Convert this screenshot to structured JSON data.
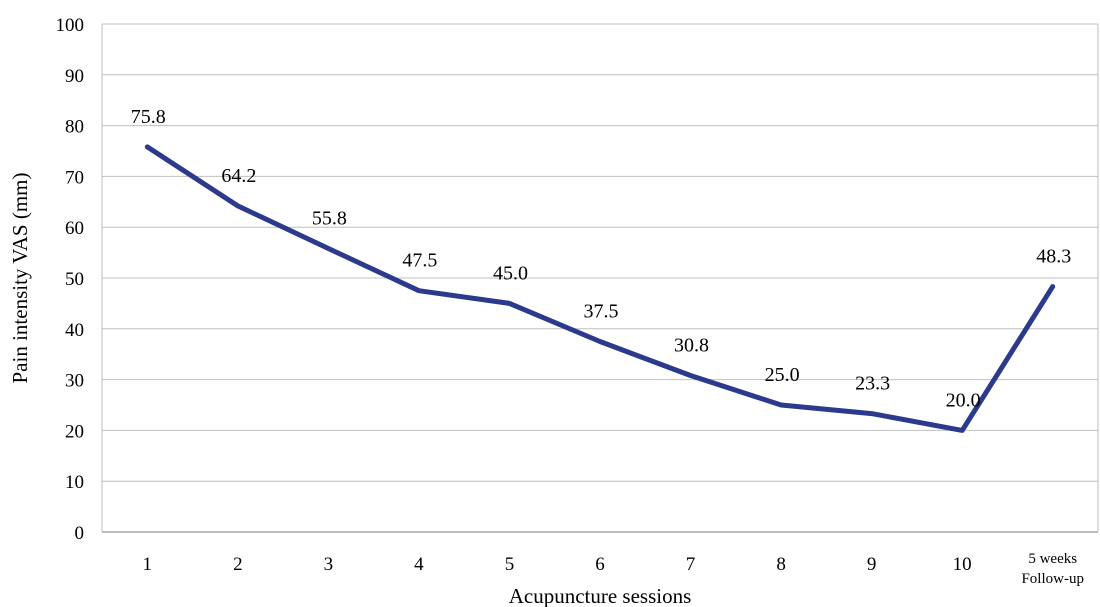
{
  "chart_data": {
    "type": "line",
    "title": "",
    "xlabel": "Acupuncture sessions",
    "ylabel": "Pain intensity VAS (mm)",
    "ylim": [
      0,
      100
    ],
    "y_ticks": [
      "0",
      "10",
      "20",
      "30",
      "40",
      "50",
      "60",
      "70",
      "80",
      "90",
      "100"
    ],
    "grid": "horizontal",
    "legend": "none",
    "categories": [
      "1",
      "2",
      "3",
      "4",
      "5",
      "6",
      "7",
      "8",
      "9",
      "10",
      "5 weeks Follow-up"
    ],
    "category_lines": [
      [
        "1"
      ],
      [
        "2"
      ],
      [
        "3"
      ],
      [
        "4"
      ],
      [
        "5"
      ],
      [
        "6"
      ],
      [
        "7"
      ],
      [
        "8"
      ],
      [
        "9"
      ],
      [
        "10"
      ],
      [
        "5 weeks",
        "Follow-up"
      ]
    ],
    "series": [
      {
        "values": [
          75.8,
          64.2,
          55.8,
          47.5,
          45.0,
          37.5,
          30.8,
          25.0,
          23.3,
          20.0,
          48.3
        ],
        "labels": [
          "75.8",
          "64.2",
          "55.8",
          "47.5",
          "45.0",
          "37.5",
          "30.8",
          "25.0",
          "23.3",
          "20.0",
          "48.3"
        ],
        "color": "#2b3a8c"
      }
    ],
    "colors": {
      "grid": "#bfbfbf",
      "axis": "#a6a6a6",
      "plot_border": "#bfbfbf"
    }
  }
}
